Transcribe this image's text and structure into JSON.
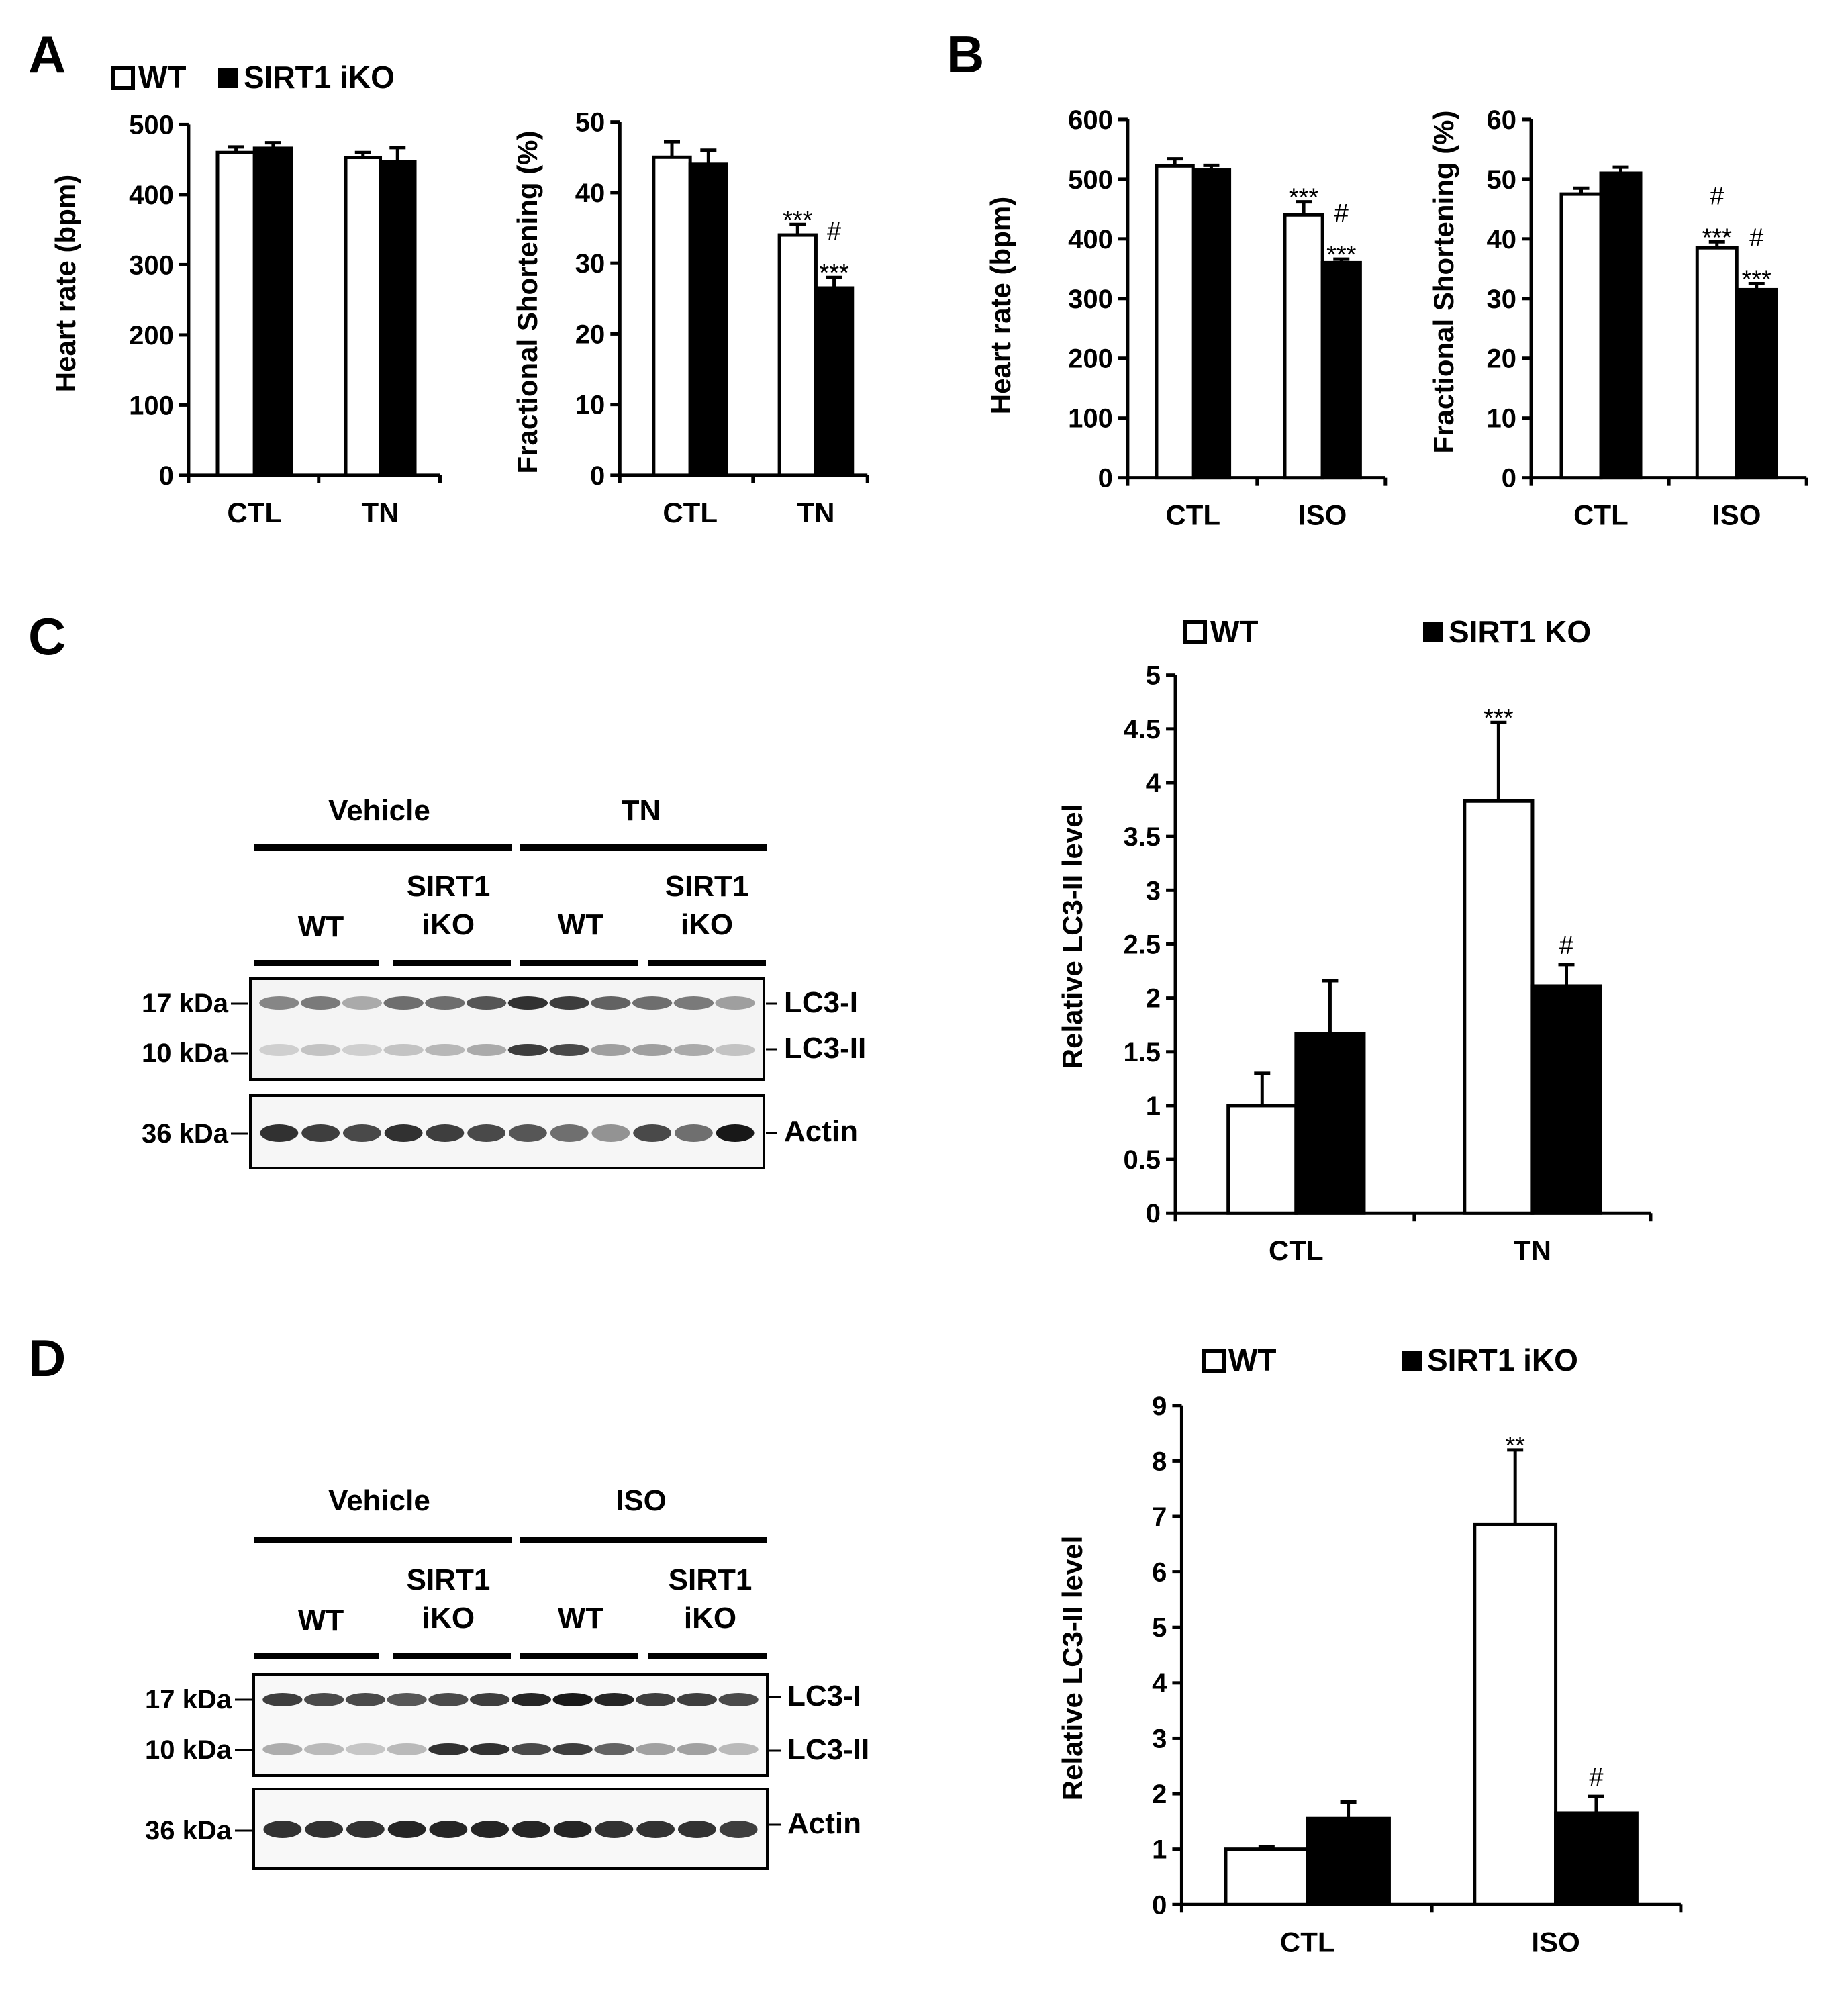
{
  "panels": {
    "A": {
      "letter": "A",
      "legend": {
        "wt": "WT",
        "ko": "SIRT1 iKO"
      },
      "charts": {
        "hr": {
          "ylabel": "Heart rate (bpm)"
        },
        "fs": {
          "ylabel": "Fractional Shortening (%)"
        }
      }
    },
    "B": {
      "letter": "B",
      "charts": {
        "hr": {
          "ylabel": "Heart rate (bpm)"
        },
        "fs": {
          "ylabel": "Fractional Shortening (%)"
        }
      }
    },
    "C": {
      "letter": "C",
      "legend": {
        "wt": "WT",
        "ko": "SIRT1 KO"
      },
      "blot": {
        "groups": [
          "Vehicle",
          "TN"
        ],
        "genotypes": [
          "WT",
          "SIRT1\niKO",
          "WT",
          "SIRT1\niKO"
        ],
        "mw": [
          "17 kDa",
          "10 kDa",
          "36 kDa"
        ],
        "bands": [
          "LC3-I",
          "LC3-II",
          "Actin"
        ]
      },
      "chart": {
        "ylabel": "Relative LC3-II level"
      }
    },
    "D": {
      "letter": "D",
      "legend": {
        "wt": "WT",
        "ko": "SIRT1 iKO"
      },
      "blot": {
        "groups": [
          "Vehicle",
          "ISO"
        ],
        "genotypes": [
          "WT",
          "SIRT1\niKO",
          "WT",
          "SIRT1\niKO"
        ],
        "mw": [
          "17 kDa",
          "10 kDa",
          "36 kDa"
        ],
        "bands": [
          "LC3-I",
          "LC3-II",
          "Actin"
        ]
      },
      "chart": {
        "ylabel": "Relative LC3-II level"
      }
    }
  },
  "colors": {
    "wt": "#ffffff",
    "ko": "#000000",
    "axis": "#000000"
  },
  "chart_data": [
    {
      "id": "A-hr",
      "type": "bar",
      "title": "",
      "categories": [
        "CTL",
        "TN"
      ],
      "ylabel": "Heart rate (bpm)",
      "ylim": [
        0,
        500
      ],
      "yticks": [
        0,
        100,
        200,
        300,
        400,
        500
      ],
      "series": [
        {
          "name": "WT",
          "values": [
            460,
            453
          ],
          "errors": [
            8,
            7
          ]
        },
        {
          "name": "SIRT1 iKO",
          "values": [
            466,
            447
          ],
          "errors": [
            8,
            20
          ]
        }
      ],
      "annotations": []
    },
    {
      "id": "A-fs",
      "type": "bar",
      "title": "",
      "categories": [
        "CTL",
        "TN"
      ],
      "ylabel": "Fractional Shortening (%)",
      "ylim": [
        0,
        50
      ],
      "yticks": [
        0,
        10,
        20,
        30,
        40,
        50
      ],
      "series": [
        {
          "name": "WT",
          "values": [
            45,
            34
          ],
          "errors": [
            2.2,
            1.5
          ]
        },
        {
          "name": "SIRT1 iKO",
          "values": [
            44,
            26.5
          ],
          "errors": [
            2,
            1.5
          ]
        }
      ],
      "annotations": [
        {
          "series": 0,
          "cat": 1,
          "labels": [
            "***"
          ]
        },
        {
          "series": 1,
          "cat": 1,
          "labels": [
            "#",
            "***"
          ]
        }
      ]
    },
    {
      "id": "B-hr",
      "type": "bar",
      "title": "",
      "categories": [
        "CTL",
        "ISO"
      ],
      "ylabel": "Heart rate (bpm)",
      "ylim": [
        0,
        600
      ],
      "yticks": [
        0,
        100,
        200,
        300,
        400,
        500,
        600
      ],
      "series": [
        {
          "name": "WT",
          "values": [
            522,
            440
          ],
          "errors": [
            12,
            22
          ]
        },
        {
          "name": "SIRT1 iKO",
          "values": [
            515,
            360
          ],
          "errors": [
            8,
            6
          ]
        }
      ],
      "annotations": [
        {
          "series": 0,
          "cat": 1,
          "labels": [
            "***"
          ]
        },
        {
          "series": 1,
          "cat": 1,
          "labels": [
            "#",
            "***"
          ]
        }
      ]
    },
    {
      "id": "B-fs",
      "type": "bar",
      "title": "",
      "categories": [
        "CTL",
        "ISO"
      ],
      "ylabel": "Fractional Shortening (%)",
      "ylim": [
        0,
        60
      ],
      "yticks": [
        0,
        10,
        20,
        30,
        40,
        50,
        60
      ],
      "series": [
        {
          "name": "WT",
          "values": [
            47.5,
            38.5
          ],
          "errors": [
            1,
            1
          ]
        },
        {
          "name": "SIRT1 iKO",
          "values": [
            51,
            31.5
          ],
          "errors": [
            1,
            1
          ]
        }
      ],
      "annotations": [
        {
          "series": 0,
          "cat": 1,
          "labels": [
            "#",
            "***"
          ]
        },
        {
          "series": 1,
          "cat": 1,
          "labels": [
            "#",
            "***"
          ]
        }
      ]
    },
    {
      "id": "C-lc3",
      "type": "bar",
      "title": "",
      "categories": [
        "CTL",
        "TN"
      ],
      "ylabel": "Relative LC3-II level",
      "ylim": [
        0,
        5
      ],
      "yticks": [
        0,
        0.5,
        1,
        1.5,
        2,
        2.5,
        3,
        3.5,
        4,
        4.5,
        5
      ],
      "series": [
        {
          "name": "WT",
          "values": [
            1,
            3.83
          ],
          "errors": [
            0.3,
            0.73
          ]
        },
        {
          "name": "SIRT1 KO",
          "values": [
            1.67,
            2.11
          ],
          "errors": [
            0.49,
            0.2
          ]
        }
      ],
      "annotations": [
        {
          "series": 0,
          "cat": 1,
          "labels": [
            "***"
          ]
        },
        {
          "series": 1,
          "cat": 1,
          "labels": [
            "#"
          ]
        }
      ]
    },
    {
      "id": "D-lc3",
      "type": "bar",
      "title": "",
      "categories": [
        "CTL",
        "ISO"
      ],
      "ylabel": "Relative LC3-II level",
      "ylim": [
        0,
        9
      ],
      "yticks": [
        0,
        1,
        2,
        3,
        4,
        5,
        6,
        7,
        8,
        9
      ],
      "series": [
        {
          "name": "WT",
          "values": [
            1,
            6.85
          ],
          "errors": [
            0.05,
            1.35
          ]
        },
        {
          "name": "SIRT1 iKO",
          "values": [
            1.55,
            1.65
          ],
          "errors": [
            0.3,
            0.3
          ]
        }
      ],
      "annotations": [
        {
          "series": 0,
          "cat": 1,
          "labels": [
            "**"
          ]
        },
        {
          "series": 1,
          "cat": 1,
          "labels": [
            "#"
          ]
        }
      ]
    }
  ]
}
